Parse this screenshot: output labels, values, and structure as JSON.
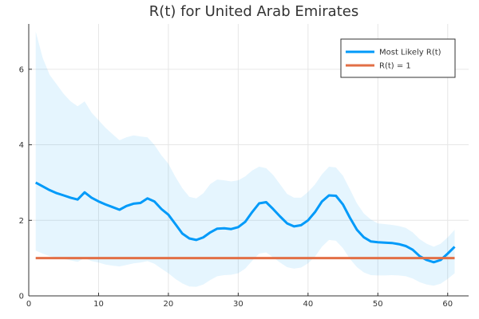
{
  "chart_data": {
    "type": "line",
    "title": "R(t) for United Arab Emirates",
    "xlabel": "",
    "ylabel": "",
    "xlim": [
      0,
      63
    ],
    "ylim": [
      0,
      7.2
    ],
    "xticks": [
      0,
      10,
      20,
      30,
      40,
      50,
      60
    ],
    "yticks": [
      0,
      2,
      4,
      6
    ],
    "grid": true,
    "legend_position": "top-right",
    "x": [
      1,
      2,
      3,
      4,
      5,
      6,
      7,
      8,
      9,
      10,
      11,
      12,
      13,
      14,
      15,
      16,
      17,
      18,
      19,
      20,
      21,
      22,
      23,
      24,
      25,
      26,
      27,
      28,
      29,
      30,
      31,
      32,
      33,
      34,
      35,
      36,
      37,
      38,
      39,
      40,
      41,
      42,
      43,
      44,
      45,
      46,
      47,
      48,
      49,
      50,
      51,
      52,
      53,
      54,
      55,
      56,
      57,
      58,
      59,
      60,
      61
    ],
    "series": [
      {
        "name": "Most Likely R(t)",
        "color": "#009AF9",
        "values": [
          3.0,
          2.9,
          2.8,
          2.72,
          2.66,
          2.6,
          2.55,
          2.74,
          2.6,
          2.5,
          2.42,
          2.35,
          2.28,
          2.38,
          2.44,
          2.46,
          2.58,
          2.5,
          2.3,
          2.15,
          1.9,
          1.65,
          1.52,
          1.48,
          1.55,
          1.68,
          1.78,
          1.79,
          1.77,
          1.82,
          1.96,
          2.22,
          2.45,
          2.48,
          2.3,
          2.1,
          1.92,
          1.84,
          1.87,
          2.0,
          2.22,
          2.5,
          2.66,
          2.65,
          2.42,
          2.07,
          1.75,
          1.55,
          1.44,
          1.42,
          1.41,
          1.4,
          1.37,
          1.32,
          1.22,
          1.05,
          0.95,
          0.89,
          0.95,
          1.12,
          1.3
        ],
        "band_upper": [
          7.0,
          6.3,
          5.85,
          5.6,
          5.35,
          5.15,
          5.02,
          5.15,
          4.85,
          4.65,
          4.45,
          4.28,
          4.12,
          4.2,
          4.25,
          4.22,
          4.2,
          4.0,
          3.72,
          3.5,
          3.15,
          2.85,
          2.62,
          2.58,
          2.72,
          2.96,
          3.08,
          3.06,
          3.03,
          3.06,
          3.16,
          3.32,
          3.42,
          3.38,
          3.2,
          2.95,
          2.7,
          2.6,
          2.6,
          2.75,
          2.95,
          3.22,
          3.42,
          3.4,
          3.18,
          2.82,
          2.45,
          2.18,
          2.02,
          1.92,
          1.9,
          1.88,
          1.85,
          1.8,
          1.68,
          1.5,
          1.38,
          1.3,
          1.38,
          1.55,
          1.75
        ],
        "band_lower": [
          1.2,
          1.12,
          1.05,
          1.02,
          0.98,
          0.94,
          0.9,
          1.0,
          0.92,
          0.88,
          0.83,
          0.8,
          0.78,
          0.82,
          0.86,
          0.88,
          0.92,
          0.85,
          0.72,
          0.6,
          0.45,
          0.33,
          0.25,
          0.24,
          0.3,
          0.42,
          0.52,
          0.55,
          0.56,
          0.6,
          0.72,
          0.93,
          1.12,
          1.15,
          1.02,
          0.88,
          0.76,
          0.72,
          0.75,
          0.86,
          1.04,
          1.3,
          1.48,
          1.46,
          1.26,
          0.98,
          0.76,
          0.62,
          0.55,
          0.54,
          0.54,
          0.55,
          0.54,
          0.52,
          0.46,
          0.36,
          0.3,
          0.27,
          0.32,
          0.45,
          0.6
        ]
      },
      {
        "name": "R(t) = 1",
        "color": "#E26F46",
        "values": [
          1,
          1,
          1,
          1,
          1,
          1,
          1,
          1,
          1,
          1,
          1,
          1,
          1,
          1,
          1,
          1,
          1,
          1,
          1,
          1,
          1,
          1,
          1,
          1,
          1,
          1,
          1,
          1,
          1,
          1,
          1,
          1,
          1,
          1,
          1,
          1,
          1,
          1,
          1,
          1,
          1,
          1,
          1,
          1,
          1,
          1,
          1,
          1,
          1,
          1,
          1,
          1,
          1,
          1,
          1,
          1,
          1,
          1,
          1,
          1,
          1
        ]
      }
    ],
    "band_color": "#009AF9"
  }
}
